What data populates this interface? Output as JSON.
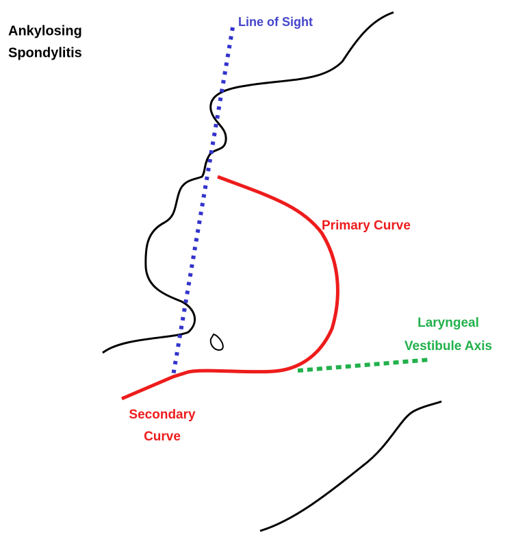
{
  "title": {
    "lines": [
      "Ankylosing",
      "Spondylitis"
    ]
  },
  "labels": {
    "line_of_sight": "Line of Sight",
    "primary_curve": "Primary Curve",
    "laryngeal_axis": [
      "Laryngeal",
      "Vestibule Axis"
    ],
    "secondary_curve": [
      "Secondary",
      "Curve"
    ]
  }
}
